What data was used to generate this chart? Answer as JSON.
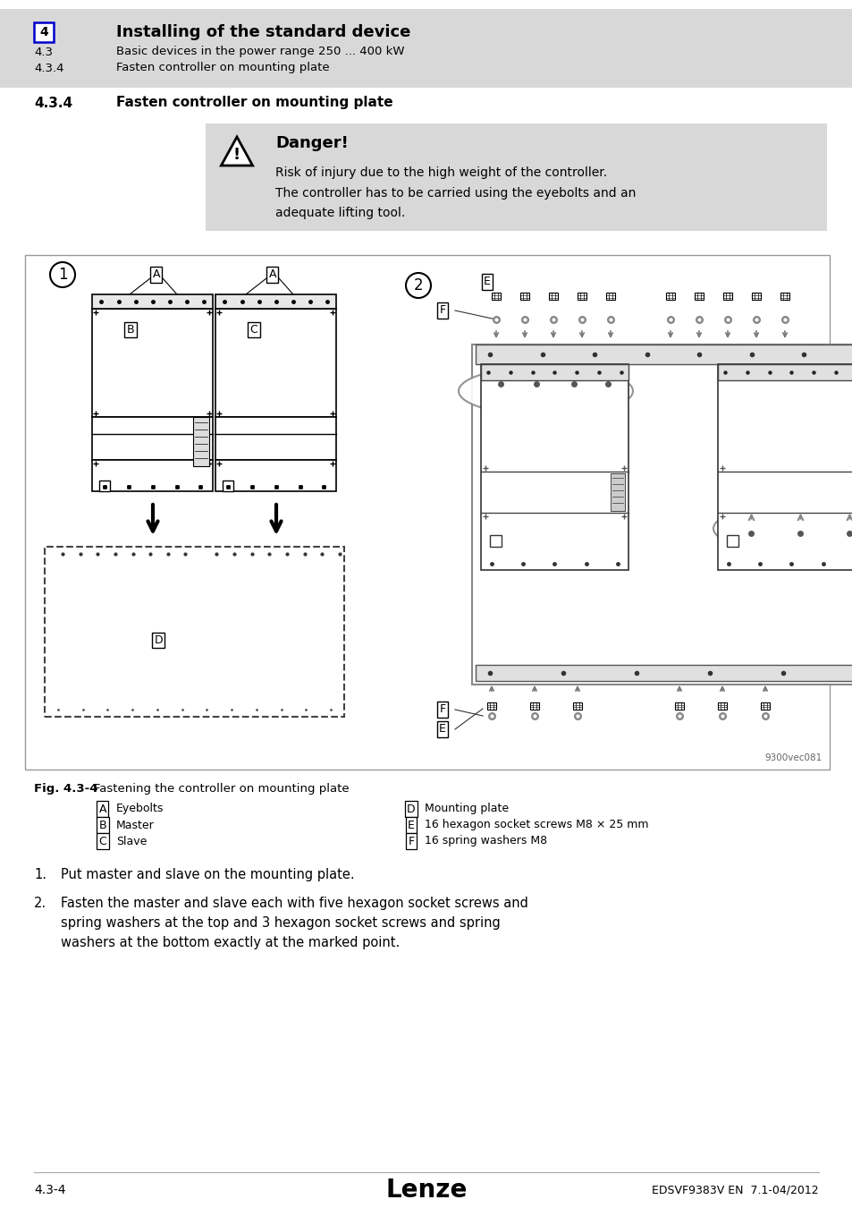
{
  "header_bg": "#d8d8d8",
  "header_num": "4",
  "header_num_border": "#0000cc",
  "header_title": "Installing of the standard device",
  "header_sub1_num": "4.3",
  "header_sub1": "Basic devices in the power range 250 ... 400 kW",
  "header_sub2_num": "4.3.4",
  "header_sub2": "Fasten controller on mounting plate",
  "section_num": "4.3.4",
  "section_title": "Fasten controller on mounting plate",
  "danger_bg": "#d8d8d8",
  "danger_title": "Danger!",
  "danger_line1": "Risk of injury due to the high weight of the controller.",
  "danger_line2": "The controller has to be carried using the eyebolts and an",
  "danger_line3": "adequate lifting tool.",
  "fig_label": "Fig. 4.3-4",
  "fig_caption": "Fastening the controller on mounting plate",
  "legend_A": "Eyebolts",
  "legend_B": "Master",
  "legend_C": "Slave",
  "legend_D": "Mounting plate",
  "legend_E": "16 hexagon socket screws M8 × 25 mm",
  "legend_F": "16 spring washers M8",
  "step1": "Put master and slave on the mounting plate.",
  "step2_line1": "Fasten the master and slave each with five hexagon socket screws and",
  "step2_line2": "spring washers at the top and 3 hexagon socket screws and spring",
  "step2_line3": "washers at the bottom exactly at the marked point.",
  "footer_left": "4.3-4",
  "footer_center": "Lenze",
  "footer_right": "EDSVF9383V EN  7.1-04/2012",
  "diagram_ref": "9300vec081"
}
